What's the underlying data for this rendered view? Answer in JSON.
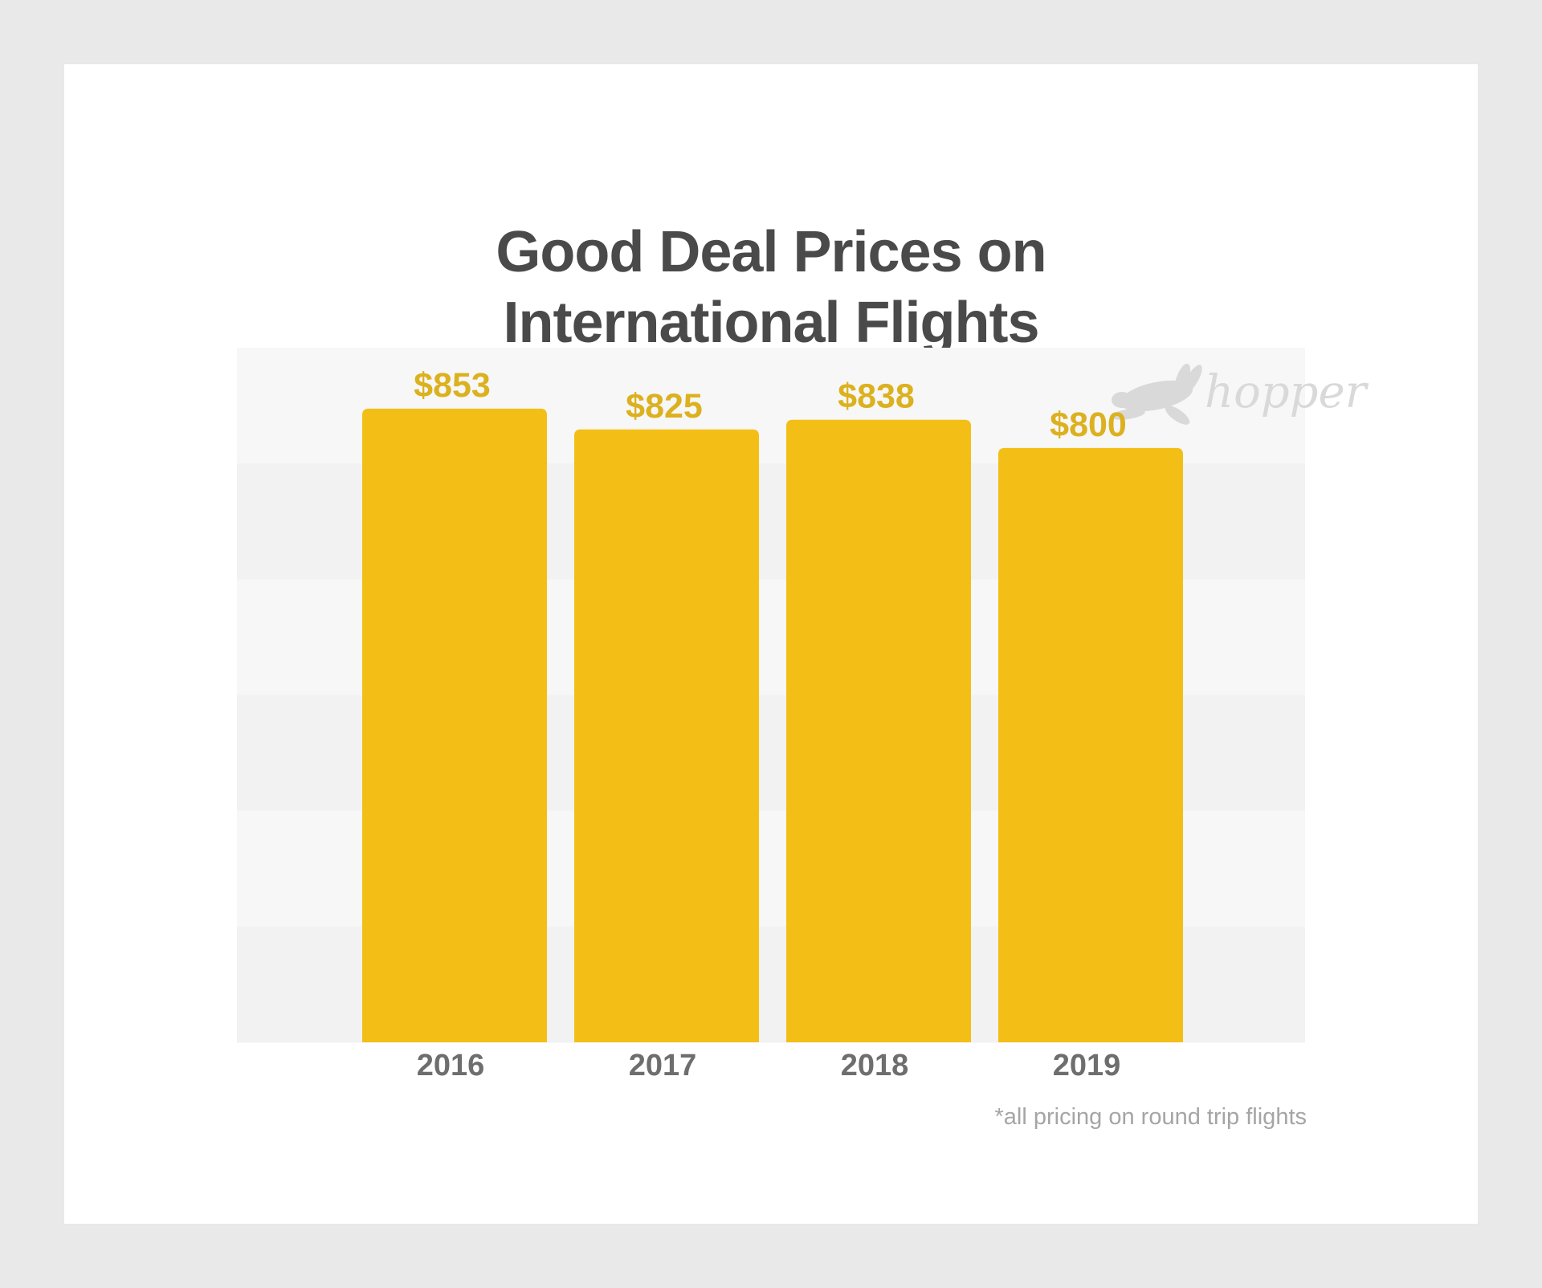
{
  "colors": {
    "page_background": "#e9e9e9",
    "card_background": "#ffffff",
    "band_light": "#f7f7f7",
    "band_dark": "#f2f2f2",
    "bar": "#f3bf17",
    "value_label": "#dcb11f",
    "title": "#4a4a4a",
    "tick_label": "#6e6e6e",
    "footnote": "#a5a5a5",
    "logo": "#d9d9d9"
  },
  "logo": {
    "text": "hopper",
    "icon": "rabbit-icon"
  },
  "footnote": "*all pricing on round trip flights",
  "chart_data": {
    "type": "bar",
    "title_lines": [
      "Good Deal Prices on",
      "International Flights"
    ],
    "categories": [
      "2016",
      "2017",
      "2018",
      "2019"
    ],
    "values": [
      853,
      825,
      838,
      800
    ],
    "value_labels": [
      "$853",
      "$825",
      "$838",
      "$800"
    ],
    "xlabel": "",
    "ylabel": "",
    "ylim": [
      0,
      935
    ],
    "y_axis_visible": false,
    "grid": "alternating horizontal bands",
    "legend": "none"
  }
}
